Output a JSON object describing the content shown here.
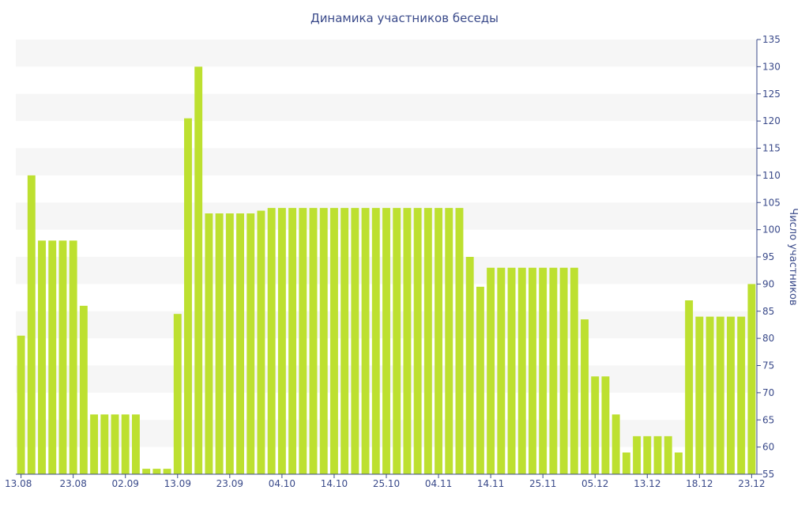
{
  "colors": {
    "bar": "#bde030",
    "band": "#f6f6f6",
    "axis_text": "#3a4a8a",
    "axis_line": "#3a4a8a"
  },
  "chart_data": {
    "type": "bar",
    "title": "Динамика участников беседы",
    "xlabel": "",
    "ylabel": "Число участников",
    "y_axis_position": "right",
    "ylim": [
      55,
      135
    ],
    "y_ticks": [
      55,
      60,
      65,
      70,
      75,
      80,
      85,
      90,
      95,
      100,
      105,
      110,
      115,
      120,
      125,
      130,
      135
    ],
    "x_tick_labels": [
      {
        "label": "13.08",
        "index": 0
      },
      {
        "label": "23.08",
        "index": 5
      },
      {
        "label": "02.09",
        "index": 10
      },
      {
        "label": "13.09",
        "index": 15
      },
      {
        "label": "23.09",
        "index": 20
      },
      {
        "label": "04.10",
        "index": 25
      },
      {
        "label": "14.10",
        "index": 30
      },
      {
        "label": "25.10",
        "index": 35
      },
      {
        "label": "04.11",
        "index": 40
      },
      {
        "label": "14.11",
        "index": 45
      },
      {
        "label": "25.11",
        "index": 50
      },
      {
        "label": "05.12",
        "index": 55
      },
      {
        "label": "13.12",
        "index": 60
      },
      {
        "label": "18.12",
        "index": 65
      },
      {
        "label": "23.12",
        "index": 70
      }
    ],
    "grid": "alternating horizontal bands",
    "legend": "none",
    "values": [
      80.5,
      110,
      98,
      98,
      98,
      98,
      86,
      66,
      66,
      66,
      66,
      66,
      56,
      56,
      56,
      84.5,
      120.5,
      130,
      103,
      103,
      103,
      103,
      103,
      103.5,
      104,
      104,
      104,
      104,
      104,
      104,
      104,
      104,
      104,
      104,
      104,
      104,
      104,
      104,
      104,
      104,
      104,
      104,
      104,
      95,
      89.5,
      93,
      93,
      93,
      93,
      93,
      93,
      93,
      93,
      93,
      83.5,
      73,
      73,
      66,
      59,
      62,
      62,
      62,
      62,
      59,
      87,
      84,
      84,
      84,
      84,
      84,
      90
    ]
  }
}
